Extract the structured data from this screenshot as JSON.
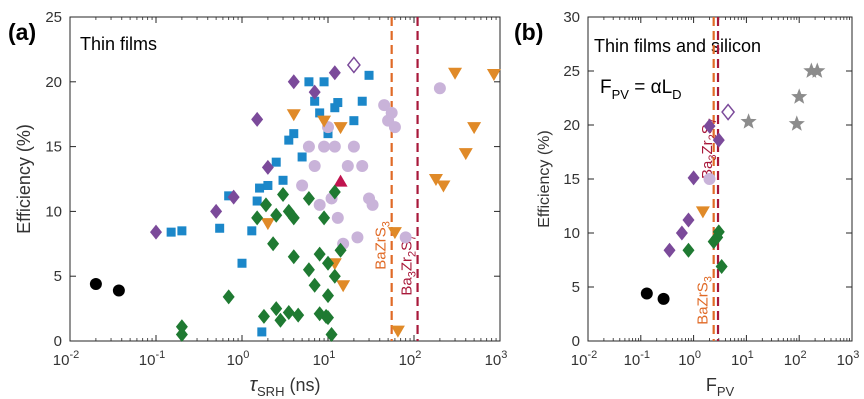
{
  "colors": {
    "blue": "#1b87c9",
    "purple": "#7b4a9a",
    "lilac": "#c9b3d9",
    "orange": "#e08a28",
    "green": "#1f7a32",
    "black": "#000000",
    "gray": "#8c8c8c",
    "crimson": "#c0144f",
    "bazrs3_line": "#e06a26",
    "ba3zr2s7_line": "#a8183a"
  },
  "chart_data": [
    {
      "panel_label": "(a)",
      "title": "Thin films",
      "type": "scatter",
      "xscale": "log",
      "xlim": [
        0.01,
        1000
      ],
      "ylim": [
        0,
        25
      ],
      "xlabel_symbol": "τ",
      "xlabel_sub": "SRH",
      "xlabel_unit": " (ns)",
      "ylabel": "Efficiency (%)",
      "xticks": [
        {
          "value": 0.01,
          "base": "10",
          "exp": "-2"
        },
        {
          "value": 0.1,
          "base": "10",
          "exp": "-1"
        },
        {
          "value": 1,
          "base": "10",
          "exp": "0"
        },
        {
          "value": 10,
          "base": "10",
          "exp": "1"
        },
        {
          "value": 100,
          "base": "10",
          "exp": "2"
        },
        {
          "value": 1000,
          "base": "10",
          "exp": "3"
        }
      ],
      "yticks": [
        "0",
        "5",
        "10",
        "15",
        "20",
        "25"
      ],
      "vlines": [
        {
          "x": 55,
          "color_key": "bazrs3_line",
          "label": "BaZrS",
          "label_sub": "3",
          "label_y": 5.5
        },
        {
          "x": 110,
          "color_key": "ba3zr2s7_line",
          "label": "Ba",
          "label_sub": "3",
          "label2": "Zr",
          "label2_sub": "2",
          "label3": "S",
          "label3_sub": "7",
          "label_y": 3.5
        }
      ],
      "series": [
        {
          "marker": "square",
          "color_key": "blue",
          "points": [
            [
              0.15,
              8.4
            ],
            [
              0.2,
              8.5
            ],
            [
              0.55,
              8.7
            ],
            [
              0.7,
              11.2
            ],
            [
              1,
              6
            ],
            [
              1.3,
              8.5
            ],
            [
              1.5,
              10.8
            ],
            [
              1.6,
              11.8
            ],
            [
              1.7,
              0.7
            ],
            [
              2,
              12
            ],
            [
              2.5,
              13.8
            ],
            [
              3,
              12.4
            ],
            [
              3.5,
              15.5
            ],
            [
              4,
              16
            ],
            [
              5,
              14.2
            ],
            [
              6,
              20
            ],
            [
              7,
              18.5
            ],
            [
              8,
              17.6
            ],
            [
              9,
              20
            ],
            [
              10,
              16
            ],
            [
              12,
              18
            ],
            [
              13,
              18.4
            ],
            [
              20,
              17
            ],
            [
              25,
              18.5
            ],
            [
              30,
              20.5
            ]
          ]
        },
        {
          "marker": "diamond",
          "color_key": "purple",
          "points": [
            [
              0.1,
              8.4
            ],
            [
              0.5,
              10
            ],
            [
              0.8,
              11.1
            ],
            [
              1.5,
              17.1
            ],
            [
              2,
              13.4
            ],
            [
              4,
              20
            ],
            [
              7,
              19.2
            ],
            [
              12,
              20.7
            ]
          ]
        },
        {
          "marker": "diamond-open",
          "color_key": "purple",
          "points": [
            [
              20,
              21.3
            ]
          ]
        },
        {
          "marker": "circle",
          "color_key": "lilac",
          "points": [
            [
              5,
              12
            ],
            [
              6,
              15
            ],
            [
              7,
              13.5
            ],
            [
              8,
              10.5
            ],
            [
              9,
              15
            ],
            [
              10,
              16.5
            ],
            [
              11,
              11
            ],
            [
              12,
              15
            ],
            [
              13,
              9.5
            ],
            [
              15,
              7.5
            ],
            [
              17,
              13.5
            ],
            [
              20,
              15
            ],
            [
              22,
              8
            ],
            [
              25,
              13.5
            ],
            [
              30,
              11
            ],
            [
              33,
              10.5
            ],
            [
              45,
              18.2
            ],
            [
              50,
              17
            ],
            [
              55,
              17.6
            ],
            [
              60,
              16.5
            ],
            [
              80,
              8
            ],
            [
              200,
              19.5
            ]
          ]
        },
        {
          "marker": "triangle-down",
          "color_key": "orange",
          "points": [
            [
              2,
              9.1
            ],
            [
              4,
              17.5
            ],
            [
              9,
              17
            ],
            [
              12,
              6
            ],
            [
              14,
              16.5
            ],
            [
              15,
              4.3
            ],
            [
              60,
              8.4
            ],
            [
              65,
              0.8
            ],
            [
              180,
              12.5
            ],
            [
              220,
              12
            ],
            [
              300,
              20.7
            ],
            [
              400,
              14.5
            ],
            [
              500,
              16.5
            ],
            [
              850,
              20.6
            ]
          ]
        },
        {
          "marker": "triangle-up",
          "color_key": "crimson",
          "points": [
            [
              14,
              12.3
            ]
          ]
        },
        {
          "marker": "diamond",
          "color_key": "green",
          "points": [
            [
              0.2,
              0.5
            ],
            [
              0.2,
              1.1
            ],
            [
              0.7,
              3.4
            ],
            [
              1.5,
              9.5
            ],
            [
              1.8,
              1.9
            ],
            [
              1.9,
              10.5
            ],
            [
              2.3,
              7.5
            ],
            [
              2.5,
              2.5
            ],
            [
              2.5,
              9.7
            ],
            [
              2.8,
              1.6
            ],
            [
              3,
              11.3
            ],
            [
              3.5,
              2.2
            ],
            [
              3.5,
              10
            ],
            [
              4,
              9.5
            ],
            [
              4,
              6.5
            ],
            [
              4.5,
              2
            ],
            [
              6,
              11
            ],
            [
              6,
              5.5
            ],
            [
              7,
              4.3
            ],
            [
              8,
              6.7
            ],
            [
              8,
              2.1
            ],
            [
              9,
              9.5
            ],
            [
              9.5,
              1.9
            ],
            [
              10,
              3.5
            ],
            [
              10,
              6
            ],
            [
              10,
              1.8
            ],
            [
              11,
              0.5
            ],
            [
              12,
              11.5
            ],
            [
              12,
              5
            ],
            [
              14,
              7
            ]
          ]
        },
        {
          "marker": "circle",
          "color_key": "black",
          "points": [
            [
              0.02,
              4.4
            ],
            [
              0.037,
              3.9
            ]
          ]
        }
      ]
    },
    {
      "panel_label": "(b)",
      "title": "Thin films and silicon",
      "type": "scatter",
      "xscale": "log",
      "xlim": [
        0.01,
        1000
      ],
      "ylim": [
        0,
        30
      ],
      "xlabel": "F",
      "xlabel_sub": "PV",
      "ylabel": "Efficiency (%)",
      "equation": {
        "lhs": "F",
        "lhs_sub": "PV",
        "rhs": " = αL",
        "rhs_sub": "D"
      },
      "xticks": [
        {
          "value": 0.01,
          "base": "10",
          "exp": "-2"
        },
        {
          "value": 0.1,
          "base": "10",
          "exp": "-1"
        },
        {
          "value": 1,
          "base": "10",
          "exp": "0"
        },
        {
          "value": 10,
          "base": "10",
          "exp": "1"
        },
        {
          "value": 100,
          "base": "10",
          "exp": "2"
        },
        {
          "value": 1000,
          "base": "10",
          "exp": "3"
        }
      ],
      "yticks": [
        "0",
        "5",
        "10",
        "15",
        "20",
        "25",
        "30"
      ],
      "vlines": [
        {
          "x": 2.4,
          "color_key": "bazrs3_line",
          "label": "BaZrS",
          "label_sub": "3",
          "label_y": 1.5
        },
        {
          "x": 2.9,
          "color_key": "ba3zr2s7_line",
          "label": "Ba",
          "label_sub": "3",
          "label2": "Zr",
          "label2_sub": "2",
          "label3": "S",
          "label3_sub": "7",
          "label_y": 15
        }
      ],
      "series": [
        {
          "marker": "diamond",
          "color_key": "purple",
          "points": [
            [
              0.35,
              8.4
            ],
            [
              0.6,
              10
            ],
            [
              0.8,
              11.2
            ],
            [
              1,
              15.1
            ],
            [
              2,
              19.9
            ],
            [
              3,
              18.6
            ]
          ]
        },
        {
          "marker": "diamond-open",
          "color_key": "purple",
          "points": [
            [
              4.5,
              21.2
            ]
          ]
        },
        {
          "marker": "circle",
          "color_key": "lilac",
          "points": [
            [
              2,
              15
            ]
          ]
        },
        {
          "marker": "triangle-down",
          "color_key": "orange",
          "points": [
            [
              1.5,
              12
            ]
          ]
        },
        {
          "marker": "diamond",
          "color_key": "green",
          "points": [
            [
              0.8,
              8.4
            ],
            [
              2.4,
              9.2
            ],
            [
              2.8,
              9.6
            ],
            [
              3,
              10.1
            ],
            [
              3.4,
              6.9
            ]
          ]
        },
        {
          "marker": "circle",
          "color_key": "black",
          "points": [
            [
              0.13,
              4.4
            ],
            [
              0.27,
              3.9
            ]
          ]
        },
        {
          "marker": "star",
          "color_key": "gray",
          "points": [
            [
              11,
              20.3
            ],
            [
              90,
              20.1
            ],
            [
              100,
              22.6
            ],
            [
              170,
              25
            ],
            [
              220,
              25
            ]
          ]
        }
      ]
    }
  ]
}
